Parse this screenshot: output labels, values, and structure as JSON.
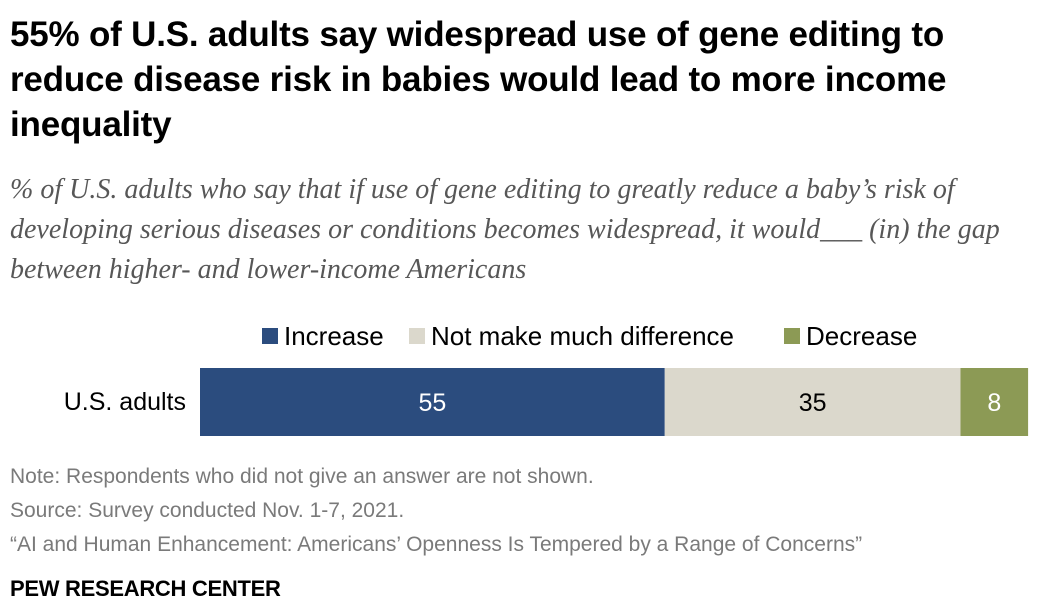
{
  "chart_data": {
    "type": "bar",
    "orientation": "horizontal",
    "stacked": true,
    "title": "55% of U.S. adults say widespread use of gene editing to reduce disease risk in babies would lead to more income inequality",
    "subtitle": "% of U.S. adults who say that if use of gene editing to greatly reduce a baby’s risk of developing serious diseases or conditions becomes widespread, it would___ (in) the gap between higher- and lower-income Americans",
    "categories": [
      "U.S. adults"
    ],
    "series": [
      {
        "name": "Increase",
        "values": [
          55
        ],
        "color": "#2b4c7e"
      },
      {
        "name": "Not make much difference",
        "values": [
          35
        ],
        "color": "#dbd8cc"
      },
      {
        "name": "Decrease",
        "values": [
          8
        ],
        "color": "#8c9a55"
      }
    ],
    "legend_position": "top",
    "grid": false,
    "xlabel": "",
    "ylabel": ""
  },
  "notes": {
    "note": "Note: Respondents who did not give an answer are not shown.",
    "source": "Source: Survey conducted Nov. 1-7, 2021.",
    "report": "“AI and Human Enhancement: Americans’ Openness Is Tempered by a Range of Concerns”"
  },
  "brand": "PEW RESEARCH CENTER"
}
